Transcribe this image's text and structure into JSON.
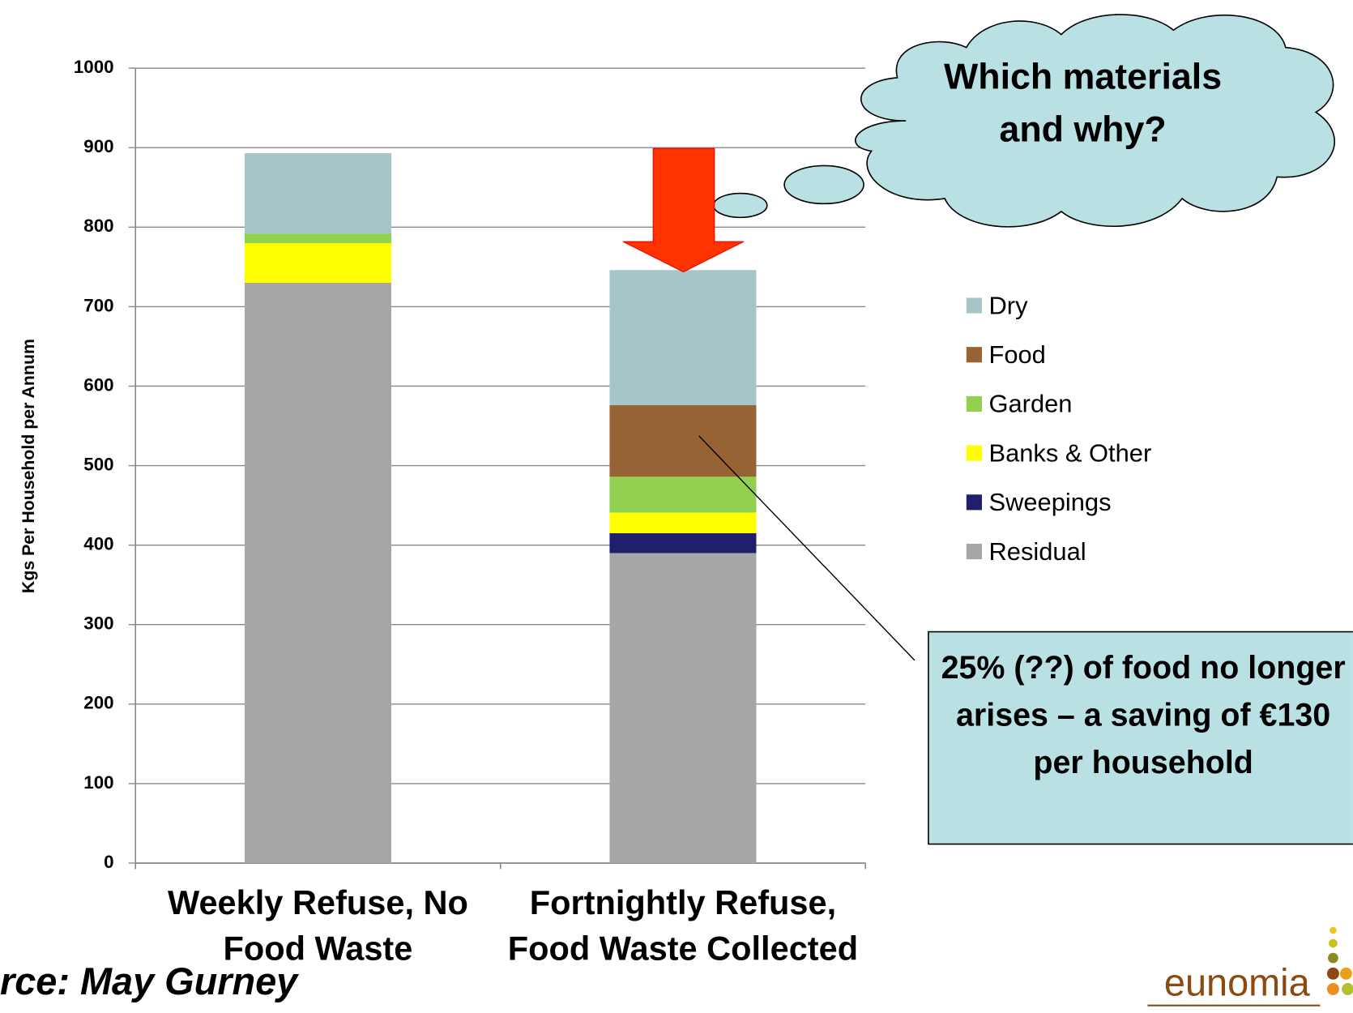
{
  "chart_data": {
    "type": "stacked_bar",
    "categories": [
      "Weekly Refuse, No Food Waste",
      "Fortnightly Refuse, Food Waste Collected"
    ],
    "series": [
      {
        "name": "Dry",
        "color": "#a5c5c9",
        "values": [
          101,
          170
        ]
      },
      {
        "name": "Food",
        "color": "#976334",
        "values": [
          0,
          90
        ]
      },
      {
        "name": "Garden",
        "color": "#92d050",
        "values": [
          12,
          45
        ]
      },
      {
        "name": "Banks & Other",
        "color": "#ffff00",
        "values": [
          50,
          26
        ]
      },
      {
        "name": "Sweepings",
        "color": "#1f1f6b",
        "values": [
          0,
          25
        ]
      },
      {
        "name": "Residual",
        "color": "#a6a6a6",
        "values": [
          730,
          390
        ]
      }
    ],
    "y_label": "Kgs Per Household per Annum",
    "ylim": [
      0,
      1000
    ],
    "yticks": [
      0,
      100,
      200,
      300,
      400,
      500,
      600,
      700,
      800,
      900,
      1000
    ],
    "grid": true,
    "legend": "right",
    "annotations": [
      "Which materials and why?",
      "25% (??) of food no longer arises – a saving of €130 per household"
    ],
    "source": "rce: May Gurney",
    "logo": "eunomia"
  }
}
